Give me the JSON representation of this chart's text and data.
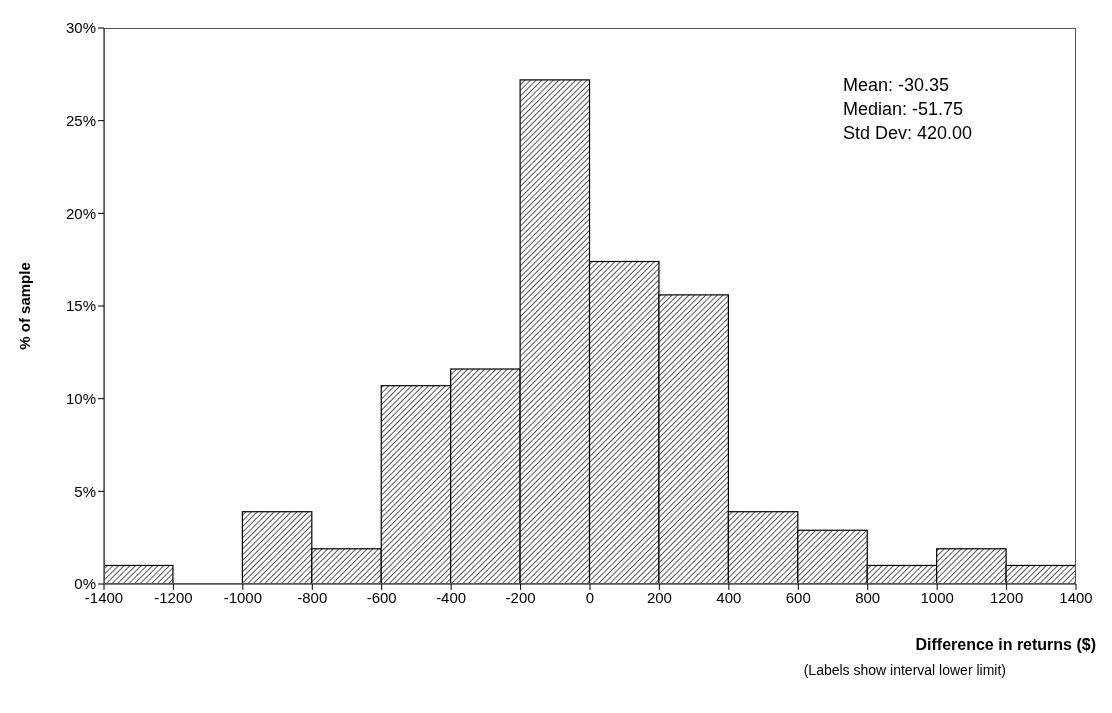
{
  "chart_data": {
    "type": "histogram",
    "ylabel": "% of sample",
    "xlabel": "Difference in returns ($)",
    "bins": [
      -1400,
      -1200,
      -1000,
      -800,
      -600,
      -400,
      -200,
      0,
      200,
      400,
      600,
      800,
      1000,
      1200,
      1400
    ],
    "values": [
      1,
      0,
      3.9,
      1.9,
      10.7,
      11.6,
      27.2,
      17.4,
      15.6,
      3.9,
      2.9,
      1,
      1.9,
      1
    ],
    "color": "#000000",
    "xlim": [
      -1400,
      1400
    ],
    "xticks": [
      -1400,
      -1200,
      -1000,
      -800,
      -600,
      -400,
      -200,
      0,
      200,
      400,
      600,
      800,
      1000,
      1200,
      1400
    ],
    "ylim": [
      0,
      30
    ],
    "yticks": [
      {
        "value": 0,
        "label": "0%"
      },
      {
        "value": 5,
        "label": "5%"
      },
      {
        "value": 10,
        "label": "10%"
      },
      {
        "value": 15,
        "label": "15%"
      },
      {
        "value": 20,
        "label": "20%"
      },
      {
        "value": 25,
        "label": "25%"
      },
      {
        "value": 30,
        "label": "30%"
      }
    ],
    "annotations": [
      "Mean: -30.35",
      "Median: -51.75",
      "Std Dev: 420.00",
      "(Labels show interval lower limit)"
    ],
    "grid": false,
    "legend": false
  }
}
